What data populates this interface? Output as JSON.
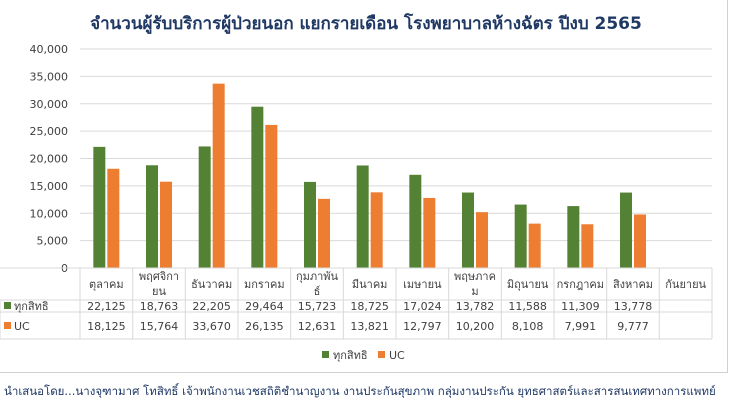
{
  "chart_data": {
    "type": "bar",
    "title": "จำนวนผู้รับบริการผู้ป่วยนอก แยกรายเดือน โรงพยาบาลห้างฉัตร ปีงบ 2565",
    "categories": [
      "ตุลาคม",
      "พฤศจิกายน",
      "ธันวาคม",
      "มกราคม",
      "กุมภาพันธ์",
      "มีนาคม",
      "เมษายน",
      "พฤษภาคม",
      "มิถุนายน",
      "กรกฎาคม",
      "สิงหาคม",
      "กันยายน"
    ],
    "category_lines": [
      [
        "ตุลาคม"
      ],
      [
        "พฤศจิกา",
        "ยน"
      ],
      [
        "ธันวาคม"
      ],
      [
        "มกราคม"
      ],
      [
        "กุมภาพัน",
        "ธ์"
      ],
      [
        "มีนาคม"
      ],
      [
        "เมษายน"
      ],
      [
        "พฤษภาค",
        "ม"
      ],
      [
        "มิถุนายน"
      ],
      [
        "กรกฎาคม"
      ],
      [
        "สิงหาคม"
      ],
      [
        "กันยายน"
      ]
    ],
    "series": [
      {
        "name": "ทุกสิทธิ",
        "color": "#548235",
        "values": [
          22125,
          18763,
          22205,
          29464,
          15723,
          18725,
          17024,
          13782,
          11588,
          11309,
          13778,
          null
        ],
        "labels": [
          "22,125",
          "18,763",
          "22,205",
          "29,464",
          "15,723",
          "18,725",
          "17,024",
          "13,782",
          "11,588",
          "11,309",
          "13,778",
          ""
        ]
      },
      {
        "name": "UC",
        "color": "#ed7d31",
        "values": [
          18125,
          15764,
          33670,
          26135,
          12631,
          13821,
          12797,
          10200,
          8108,
          7991,
          9777,
          null
        ],
        "labels": [
          "18,125",
          "15,764",
          "33,670",
          "26,135",
          "12,631",
          "13,821",
          "12,797",
          "10,200",
          "8,108",
          "7,991",
          "9,777",
          ""
        ]
      }
    ],
    "ylim": [
      0,
      40000
    ],
    "yticks": [
      0,
      5000,
      10000,
      15000,
      20000,
      25000,
      30000,
      35000,
      40000
    ],
    "ytick_labels": [
      "0",
      "5,000",
      "10,000",
      "15,000",
      "20,000",
      "25,000",
      "30,000",
      "35,000",
      "40,000"
    ],
    "grid": true,
    "legend_position": "bottom",
    "data_table": true
  },
  "footer": {
    "note": "นำเสนอโดย...นางจุฑามาศ โทสิทธิ์ เจ้าพนักงานเวชสถิติชำนาญงาน งานประกันสุขภาพ กลุ่มงานประกัน ยุทธศาสตร์และสารสนเทศทางการแพทย์"
  }
}
